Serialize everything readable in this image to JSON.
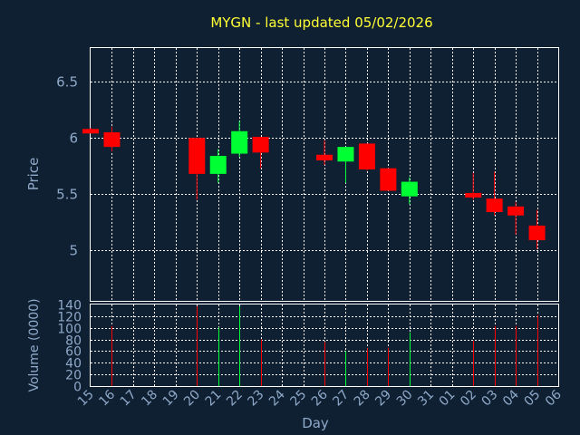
{
  "chart_data": [
    {
      "type": "candlestick",
      "title": "MYGN - last updated 05/02/2026",
      "ylabel": "Price",
      "ylim": [
        4.55,
        6.8
      ],
      "yticks": [
        {
          "value": 5,
          "label": "5"
        },
        {
          "value": 5.5,
          "label": "5.5"
        },
        {
          "value": 6,
          "label": "6"
        },
        {
          "value": 6.5,
          "label": "6.5"
        }
      ],
      "up_color": "#00ff33",
      "down_color": "#ff0000",
      "grid": true,
      "candles": [
        {
          "day": "15",
          "open": 6.08,
          "high": 6.09,
          "low": 6.04,
          "close": 6.04
        },
        {
          "day": "16",
          "open": 6.05,
          "high": 6.1,
          "low": 5.88,
          "close": 5.92
        },
        {
          "day": "20",
          "open": 6.0,
          "high": 6.0,
          "low": 5.45,
          "close": 5.68
        },
        {
          "day": "21",
          "open": 5.68,
          "high": 5.9,
          "low": 5.6,
          "close": 5.84
        },
        {
          "day": "22",
          "open": 5.86,
          "high": 6.15,
          "low": 5.83,
          "close": 6.06
        },
        {
          "day": "23",
          "open": 6.01,
          "high": 6.01,
          "low": 5.73,
          "close": 5.87
        },
        {
          "day": "26",
          "open": 5.85,
          "high": 5.98,
          "low": 5.76,
          "close": 5.8
        },
        {
          "day": "27",
          "open": 5.79,
          "high": 5.92,
          "low": 5.6,
          "close": 5.92
        },
        {
          "day": "28",
          "open": 5.95,
          "high": 5.95,
          "low": 5.71,
          "close": 5.72
        },
        {
          "day": "29",
          "open": 5.73,
          "high": 5.73,
          "low": 5.53,
          "close": 5.53
        },
        {
          "day": "30",
          "open": 5.48,
          "high": 5.65,
          "low": 5.41,
          "close": 5.61
        },
        {
          "day": "02",
          "open": 5.51,
          "high": 5.69,
          "low": 5.45,
          "close": 5.47
        },
        {
          "day": "03",
          "open": 5.46,
          "high": 5.7,
          "low": 5.31,
          "close": 5.34
        },
        {
          "day": "04",
          "open": 5.39,
          "high": 5.43,
          "low": 5.14,
          "close": 5.31
        },
        {
          "day": "05",
          "open": 5.22,
          "high": 5.36,
          "low": 5.01,
          "close": 5.09
        }
      ]
    },
    {
      "type": "bar",
      "ylabel": "Volume (0000)",
      "ylim": [
        0,
        140
      ],
      "yticks": [
        0,
        20,
        40,
        60,
        80,
        100,
        120,
        140
      ],
      "xlabel": "Day",
      "categories": [
        "15",
        "16",
        "17",
        "18",
        "19",
        "20",
        "21",
        "22",
        "23",
        "24",
        "25",
        "26",
        "27",
        "28",
        "29",
        "30",
        "31",
        "01",
        "02",
        "03",
        "04",
        "05",
        "06"
      ],
      "bars": [
        {
          "day": "16",
          "value": 103,
          "color": "#ff0000"
        },
        {
          "day": "20",
          "value": 137,
          "color": "#ff0000"
        },
        {
          "day": "21",
          "value": 101,
          "color": "#00ff33"
        },
        {
          "day": "22",
          "value": 137,
          "color": "#00ff33"
        },
        {
          "day": "23",
          "value": 80,
          "color": "#ff0000"
        },
        {
          "day": "26",
          "value": 76,
          "color": "#ff0000"
        },
        {
          "day": "27",
          "value": 60,
          "color": "#00ff33"
        },
        {
          "day": "28",
          "value": 65,
          "color": "#ff0000"
        },
        {
          "day": "29",
          "value": 66,
          "color": "#ff0000"
        },
        {
          "day": "30",
          "value": 92,
          "color": "#00ff33"
        },
        {
          "day": "02",
          "value": 78,
          "color": "#ff0000"
        },
        {
          "day": "03",
          "value": 103,
          "color": "#ff0000"
        },
        {
          "day": "04",
          "value": 103,
          "color": "#ff0000"
        },
        {
          "day": "05",
          "value": 122,
          "color": "#ff0000"
        }
      ]
    }
  ]
}
